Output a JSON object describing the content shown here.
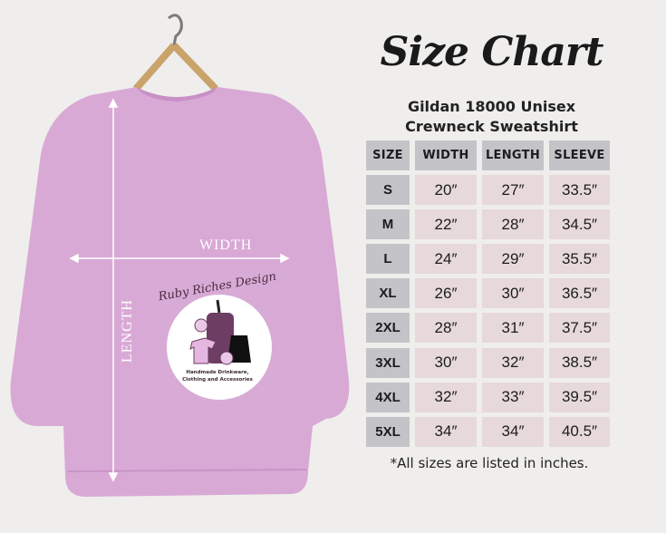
{
  "title": "Size Chart",
  "subtitle_line1": "Gildan 18000 Unisex",
  "subtitle_line2": "Crewneck Sweatshirt",
  "measure_labels": {
    "width": "WIDTH",
    "length": "LENGTH"
  },
  "logo": {
    "brand": "Ruby Riches Design",
    "tagline": "Handmade Drinkware, Clothing and Accessories"
  },
  "table": {
    "headers": [
      "SIZE",
      "WIDTH",
      "LENGTH",
      "SLEEVE"
    ],
    "rows": [
      [
        "S",
        "20″",
        "27″",
        "33.5″"
      ],
      [
        "M",
        "22″",
        "28″",
        "34.5″"
      ],
      [
        "L",
        "24″",
        "29″",
        "35.5″"
      ],
      [
        "XL",
        "26″",
        "30″",
        "36.5″"
      ],
      [
        "2XL",
        "28″",
        "31″",
        "37.5″"
      ],
      [
        "3XL",
        "30″",
        "32″",
        "38.5″"
      ],
      [
        "4XL",
        "32″",
        "33″",
        "39.5″"
      ],
      [
        "5XL",
        "34″",
        "34″",
        "40.5″"
      ]
    ]
  },
  "footnote": "*All sizes are listed in inches.",
  "colors": {
    "background": "#efeeec",
    "sweatshirt": "#d9a9d6",
    "header_cell": "#c4c3c8",
    "value_cell": "#e7d9d9"
  }
}
